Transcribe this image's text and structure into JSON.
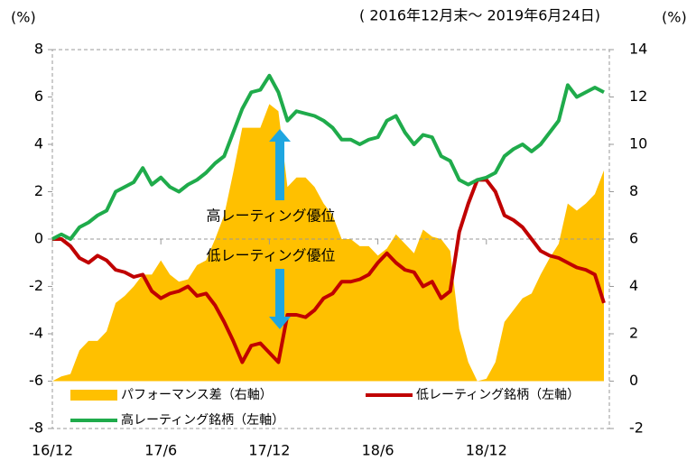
{
  "chart_data": {
    "type": "dual_axis_line_area",
    "subtitle": "( 2016年12月末～ 2019年6月24日)",
    "y_label": "(%)",
    "y2_label": "(%)",
    "annotations": [
      "高レーティング優位",
      "低レーティング優位"
    ],
    "x": [
      0,
      0.5,
      1,
      1.5,
      2,
      2.5,
      3,
      3.5,
      4,
      4.5,
      5,
      5.5,
      6,
      6.5,
      7,
      7.5,
      8,
      8.5,
      9,
      9.5,
      10,
      10.5,
      11,
      11.5,
      12,
      12.5,
      13,
      13.5,
      14,
      14.5,
      15,
      15.5,
      16,
      16.5,
      17,
      17.5,
      18,
      18.5,
      19,
      19.5,
      20,
      20.5,
      21,
      21.5,
      22,
      22.5,
      23,
      23.5,
      24,
      24.5,
      25,
      25.5,
      26,
      26.5,
      27,
      27.5,
      28,
      28.5,
      29,
      29.5,
      30,
      30.5
    ],
    "xlim": [
      0,
      30.8
    ],
    "xticks": [
      {
        "value": 0,
        "label": "16/12"
      },
      {
        "value": 6,
        "label": "17/6"
      },
      {
        "value": 12,
        "label": "17/12"
      },
      {
        "value": 18,
        "label": "18/6"
      },
      {
        "value": 24,
        "label": "18/12"
      }
    ],
    "ylim": [
      -8,
      8
    ],
    "yticks": [
      -8,
      -6,
      -4,
      -2,
      0,
      2,
      4,
      6,
      8
    ],
    "y2lim": [
      -2,
      14
    ],
    "y2ticks": [
      -2,
      0,
      2,
      4,
      6,
      8,
      10,
      12,
      14
    ],
    "series": [
      {
        "name": "パフォーマンス差（右軸）",
        "color": "#ffc000",
        "axis": "y2",
        "kind": "area",
        "values": [
          0,
          0.2,
          0.3,
          1.3,
          1.7,
          1.7,
          2.1,
          3.3,
          3.6,
          4,
          4.5,
          4.5,
          5.1,
          4.5,
          4.2,
          4.3,
          4.9,
          5.1,
          6,
          7,
          8.8,
          10.7,
          10.7,
          10.7,
          11.7,
          11.4,
          8.2,
          8.6,
          8.6,
          8.2,
          7.5,
          7,
          6,
          6,
          5.7,
          5.7,
          5.3,
          5.6,
          6.2,
          5.8,
          5.4,
          6.4,
          6.1,
          6,
          5.5,
          2.2,
          0.8,
          0,
          0.1,
          0.8,
          2.5,
          3,
          3.5,
          3.7,
          4.5,
          5.2,
          5.8,
          7.5,
          7.2,
          7.5,
          7.9,
          8.9
        ]
      },
      {
        "name": "低レーティング銘柄（左軸）",
        "color": "#c00000",
        "axis": "y",
        "kind": "line",
        "values": [
          0,
          0,
          -0.3,
          -0.8,
          -1,
          -0.7,
          -0.9,
          -1.3,
          -1.4,
          -1.6,
          -1.5,
          -2.2,
          -2.5,
          -2.3,
          -2.2,
          -2,
          -2.4,
          -2.3,
          -2.8,
          -3.5,
          -4.3,
          -5.2,
          -4.5,
          -4.4,
          -4.8,
          -5.2,
          -3.2,
          -3.2,
          -3.3,
          -3,
          -2.5,
          -2.3,
          -1.8,
          -1.8,
          -1.7,
          -1.5,
          -1,
          -0.6,
          -1,
          -1.3,
          -1.4,
          -2,
          -1.8,
          -2.5,
          -2.2,
          0.3,
          1.5,
          2.5,
          2.5,
          2,
          1,
          0.8,
          0.5,
          0,
          -0.5,
          -0.7,
          -0.8,
          -1,
          -1.2,
          -1.3,
          -1.5,
          -2.7
        ]
      },
      {
        "name": "高レーティング銘柄（左軸）",
        "color": "#1fab4b",
        "axis": "y",
        "kind": "line",
        "values": [
          0,
          0.2,
          0,
          0.5,
          0.7,
          1,
          1.2,
          2,
          2.2,
          2.4,
          3,
          2.3,
          2.6,
          2.2,
          2,
          2.3,
          2.5,
          2.8,
          3.2,
          3.5,
          4.5,
          5.5,
          6.2,
          6.3,
          6.9,
          6.2,
          5,
          5.4,
          5.3,
          5.2,
          5,
          4.7,
          4.2,
          4.2,
          4,
          4.2,
          4.3,
          5,
          5.2,
          4.5,
          4,
          4.4,
          4.3,
          3.5,
          3.3,
          2.5,
          2.3,
          2.5,
          2.6,
          2.8,
          3.5,
          3.8,
          4,
          3.7,
          4,
          4.5,
          5,
          6.5,
          6,
          6.2,
          6.4,
          6.2
        ]
      }
    ]
  }
}
